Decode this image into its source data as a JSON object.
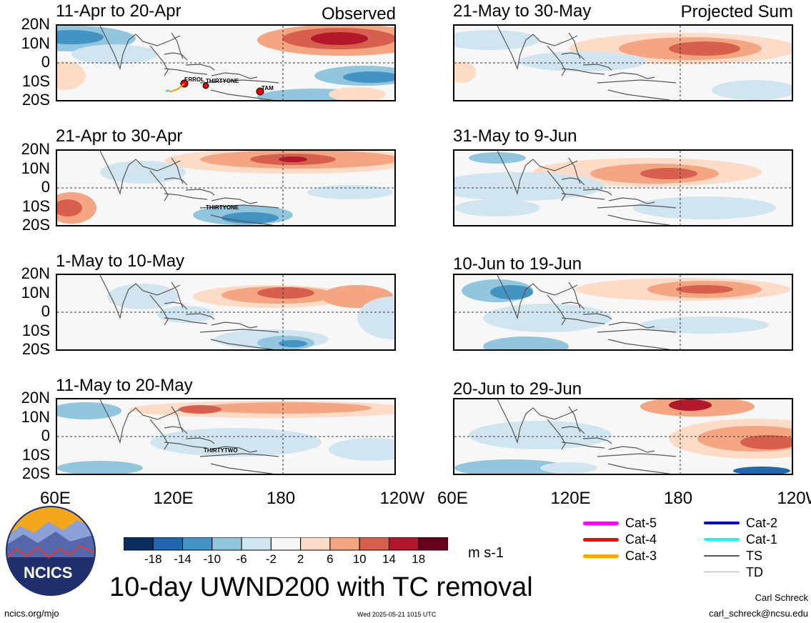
{
  "figure_title": "10-day UWND200 with TC removal",
  "headers": {
    "left": "Observed",
    "right": "Projected Sum"
  },
  "units": "m s-1",
  "footer": {
    "url": "ncics.org/mjo",
    "timestamp": "Wed 2025-05-21 1015 UTC",
    "author": "Carl Schreck",
    "email": "carl_schreck@ncsu.edu"
  },
  "logo_text": "NCICS",
  "chart_data": {
    "type": "heatmap",
    "variable": "200-hPa zonal wind anomaly",
    "units": "m s-1",
    "x_ticks": [
      "60E",
      "120E",
      "180",
      "120W"
    ],
    "y_ticks": [
      "20N",
      "10N",
      "0",
      "10S",
      "20S"
    ],
    "colorbar": {
      "labels": [
        "-18",
        "-14",
        "-10",
        "-6",
        "-2",
        "2",
        "6",
        "10",
        "14",
        "18"
      ],
      "colors": [
        "#0a2f5e",
        "#2166ac",
        "#4393c3",
        "#92c5de",
        "#d1e5f0",
        "#f7f7f7",
        "#fddbc7",
        "#f4a582",
        "#d6604d",
        "#b2182b",
        "#67001f"
      ]
    },
    "panels": [
      {
        "title": "11-Apr to 20-Apr",
        "column": "Observed",
        "storms": [
          {
            "name": "ERROL"
          },
          {
            "name": "THIRTYONE"
          },
          {
            "name": "TAM"
          }
        ]
      },
      {
        "title": "21-Apr to 30-Apr",
        "column": "Observed",
        "storms": [
          {
            "name": "THIRTYONE"
          }
        ]
      },
      {
        "title": "1-May to 10-May",
        "column": "Observed",
        "storms": []
      },
      {
        "title": "11-May to 20-May",
        "column": "Observed",
        "storms": [
          {
            "name": "THIRTYTWO"
          }
        ]
      },
      {
        "title": "21-May to 30-May",
        "column": "Projected Sum",
        "storms": []
      },
      {
        "title": "31-May to 9-Jun",
        "column": "Projected Sum",
        "storms": []
      },
      {
        "title": "10-Jun to 19-Jun",
        "column": "Projected Sum",
        "storms": []
      },
      {
        "title": "20-Jun to 29-Jun",
        "column": "Projected Sum",
        "storms": []
      }
    ]
  },
  "tc_legend": [
    {
      "label": "Cat-5",
      "color": "#ff00ff"
    },
    {
      "label": "Cat-4",
      "color": "#ff0000"
    },
    {
      "label": "Cat-3",
      "color": "#ffa500"
    },
    {
      "label": "Cat-2",
      "color": "#0000cc"
    },
    {
      "label": "Cat-1",
      "color": "#00ffff"
    },
    {
      "label": "TS",
      "color": "#555555"
    },
    {
      "label": "TD",
      "color": "#aaaaaa"
    }
  ]
}
